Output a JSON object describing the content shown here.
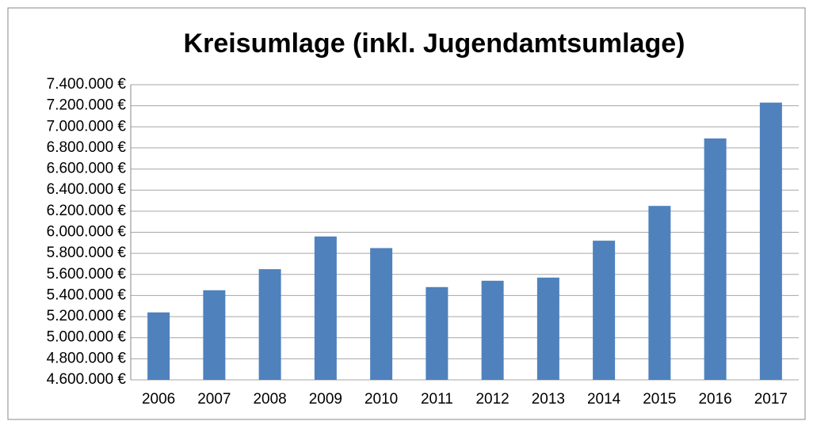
{
  "chart_data": {
    "type": "bar",
    "title": "Kreisumlage (inkl. Jugendamtsumlage)",
    "categories": [
      "2006",
      "2007",
      "2008",
      "2009",
      "2010",
      "2011",
      "2012",
      "2013",
      "2014",
      "2015",
      "2016",
      "2017"
    ],
    "values": [
      5240000,
      5450000,
      5650000,
      5960000,
      5850000,
      5480000,
      5540000,
      5570000,
      5920000,
      6250000,
      6890000,
      7230000
    ],
    "color": "#4f81bd",
    "ylim": [
      4600000,
      7400000
    ],
    "yticks": [
      {
        "value": 4600000,
        "label": "4.600.000 €"
      },
      {
        "value": 4800000,
        "label": "4.800.000 €"
      },
      {
        "value": 5000000,
        "label": "5.000.000 €"
      },
      {
        "value": 5200000,
        "label": "5.200.000 €"
      },
      {
        "value": 5400000,
        "label": "5.400.000 €"
      },
      {
        "value": 5600000,
        "label": "5.600.000 €"
      },
      {
        "value": 5800000,
        "label": "5.800.000 €"
      },
      {
        "value": 6000000,
        "label": "6.000.000 €"
      },
      {
        "value": 6200000,
        "label": "6.200.000 €"
      },
      {
        "value": 6400000,
        "label": "6.400.000 €"
      },
      {
        "value": 6600000,
        "label": "6.600.000 €"
      },
      {
        "value": 6800000,
        "label": "6.800.000 €"
      },
      {
        "value": 7000000,
        "label": "7.000.000 €"
      },
      {
        "value": 7200000,
        "label": "7.200.000 €"
      },
      {
        "value": 7400000,
        "label": "7.400.000 €"
      }
    ],
    "grid": true
  }
}
